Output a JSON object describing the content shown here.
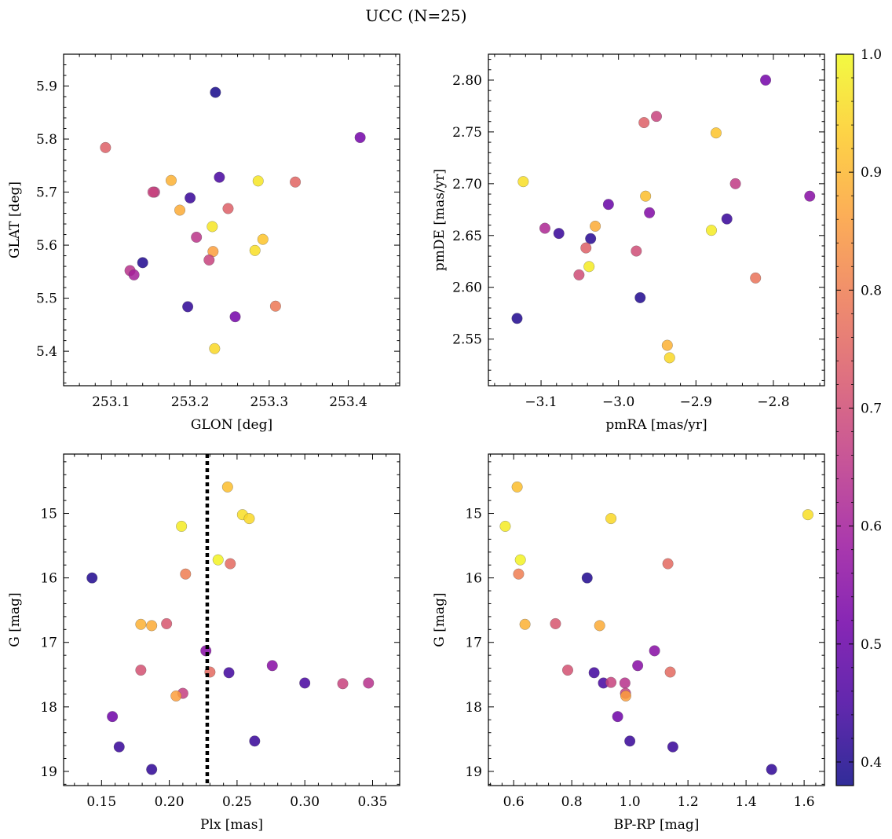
{
  "figure": {
    "title": "UCC (N=25)"
  },
  "colorbar": {
    "min": 0.38,
    "max": 1.0,
    "ticks": [
      0.4,
      0.5,
      0.6,
      0.7,
      0.8,
      0.9,
      1.0
    ],
    "tick_labels": [
      "0.4",
      "0.5",
      "0.6",
      "0.7",
      "0.8",
      "0.9",
      "1.0"
    ],
    "colormap": "plasma",
    "colormap_stops": [
      "#0d0887",
      "#46039f",
      "#7201a8",
      "#9c179e",
      "#bd3786",
      "#d8576b",
      "#ed7953",
      "#fb9f3a",
      "#fdca26",
      "#f0f921"
    ]
  },
  "chart_data": [
    {
      "type": "scatter",
      "xlabel": "GLON [deg]",
      "ylabel": "GLAT [deg]",
      "xlim": [
        253.04,
        253.465
      ],
      "ylim": [
        5.335,
        5.96
      ],
      "xticks": [
        253.1,
        253.2,
        253.3,
        253.4
      ],
      "xtick_labels": [
        "253.1",
        "253.2",
        "253.3",
        "253.4"
      ],
      "yticks": [
        5.4,
        5.5,
        5.6,
        5.7,
        5.8,
        5.9
      ],
      "ytick_labels": [
        "5.4",
        "5.5",
        "5.6",
        "5.7",
        "5.8",
        "5.9"
      ],
      "xminor": 0.02,
      "yminor": 0.02,
      "y_inverted": false,
      "points": [
        {
          "x": 253.232,
          "y": 5.888,
          "c": 0.39
        },
        {
          "x": 253.415,
          "y": 5.803,
          "c": 0.52
        },
        {
          "x": 253.093,
          "y": 5.784,
          "c": 0.74
        },
        {
          "x": 253.237,
          "y": 5.728,
          "c": 0.45
        },
        {
          "x": 253.286,
          "y": 5.721,
          "c": 0.97
        },
        {
          "x": 253.176,
          "y": 5.722,
          "c": 0.89
        },
        {
          "x": 253.333,
          "y": 5.719,
          "c": 0.75
        },
        {
          "x": 253.155,
          "y": 5.7,
          "c": 0.66
        },
        {
          "x": 253.153,
          "y": 5.7,
          "c": 0.68
        },
        {
          "x": 253.2,
          "y": 5.689,
          "c": 0.43
        },
        {
          "x": 253.248,
          "y": 5.669,
          "c": 0.74
        },
        {
          "x": 253.187,
          "y": 5.666,
          "c": 0.88
        },
        {
          "x": 253.228,
          "y": 5.635,
          "c": 0.97
        },
        {
          "x": 253.208,
          "y": 5.615,
          "c": 0.65
        },
        {
          "x": 253.292,
          "y": 5.611,
          "c": 0.92
        },
        {
          "x": 253.282,
          "y": 5.59,
          "c": 0.96
        },
        {
          "x": 253.229,
          "y": 5.588,
          "c": 0.86
        },
        {
          "x": 253.224,
          "y": 5.572,
          "c": 0.68
        },
        {
          "x": 253.14,
          "y": 5.567,
          "c": 0.4
        },
        {
          "x": 253.124,
          "y": 5.552,
          "c": 0.64
        },
        {
          "x": 253.129,
          "y": 5.544,
          "c": 0.6
        },
        {
          "x": 253.197,
          "y": 5.484,
          "c": 0.42
        },
        {
          "x": 253.308,
          "y": 5.485,
          "c": 0.79
        },
        {
          "x": 253.257,
          "y": 5.465,
          "c": 0.52
        },
        {
          "x": 253.231,
          "y": 5.405,
          "c": 0.95
        }
      ]
    },
    {
      "type": "scatter",
      "xlabel": "pmRA [mas/yr]",
      "ylabel": "pmDE [mas/yr]",
      "xlim": [
        -3.168,
        -2.734
      ],
      "ylim": [
        2.505,
        2.825
      ],
      "xticks": [
        -3.1,
        -3.0,
        -2.9,
        -2.8
      ],
      "xtick_labels": [
        "−3.1",
        "−3.0",
        "−2.9",
        "−2.8"
      ],
      "yticks": [
        2.55,
        2.6,
        2.65,
        2.7,
        2.75,
        2.8
      ],
      "ytick_labels": [
        "2.55",
        "2.60",
        "2.65",
        "2.70",
        "2.75",
        "2.80"
      ],
      "xminor": 0.02,
      "yminor": 0.01,
      "y_inverted": false,
      "points": [
        {
          "x": -2.81,
          "y": 2.8,
          "c": 0.52
        },
        {
          "x": -2.951,
          "y": 2.765,
          "c": 0.68
        },
        {
          "x": -2.967,
          "y": 2.759,
          "c": 0.74
        },
        {
          "x": -2.874,
          "y": 2.749,
          "c": 0.92
        },
        {
          "x": -3.123,
          "y": 2.702,
          "c": 0.96
        },
        {
          "x": -2.849,
          "y": 2.7,
          "c": 0.66
        },
        {
          "x": -2.753,
          "y": 2.688,
          "c": 0.55
        },
        {
          "x": -2.965,
          "y": 2.688,
          "c": 0.91
        },
        {
          "x": -3.013,
          "y": 2.68,
          "c": 0.5
        },
        {
          "x": -2.96,
          "y": 2.672,
          "c": 0.54
        },
        {
          "x": -2.86,
          "y": 2.666,
          "c": 0.43
        },
        {
          "x": -3.03,
          "y": 2.659,
          "c": 0.88
        },
        {
          "x": -3.095,
          "y": 2.657,
          "c": 0.62
        },
        {
          "x": -2.88,
          "y": 2.655,
          "c": 0.98
        },
        {
          "x": -3.077,
          "y": 2.652,
          "c": 0.43
        },
        {
          "x": -3.036,
          "y": 2.647,
          "c": 0.41
        },
        {
          "x": -3.042,
          "y": 2.638,
          "c": 0.74
        },
        {
          "x": -2.977,
          "y": 2.635,
          "c": 0.7
        },
        {
          "x": -3.038,
          "y": 2.62,
          "c": 0.98
        },
        {
          "x": -3.051,
          "y": 2.612,
          "c": 0.7
        },
        {
          "x": -2.823,
          "y": 2.609,
          "c": 0.78
        },
        {
          "x": -2.972,
          "y": 2.59,
          "c": 0.4
        },
        {
          "x": -3.131,
          "y": 2.57,
          "c": 0.4
        },
        {
          "x": -2.937,
          "y": 2.544,
          "c": 0.89
        },
        {
          "x": -2.934,
          "y": 2.532,
          "c": 0.95
        }
      ]
    },
    {
      "type": "scatter",
      "xlabel": "Plx [mas]",
      "ylabel": "G [mag]",
      "xlim": [
        0.122,
        0.37
      ],
      "ylim": [
        14.08,
        19.22
      ],
      "xticks": [
        0.15,
        0.2,
        0.25,
        0.3,
        0.35
      ],
      "xtick_labels": [
        "0.15",
        "0.20",
        "0.25",
        "0.30",
        "0.35"
      ],
      "yticks": [
        15,
        16,
        17,
        18,
        19
      ],
      "ytick_labels": [
        "15",
        "16",
        "17",
        "18",
        "19"
      ],
      "xminor": 0.01,
      "yminor": 0.2,
      "y_inverted": true,
      "vline": 0.228,
      "points": [
        {
          "x": 0.243,
          "y": 14.59,
          "c": 0.91
        },
        {
          "x": 0.254,
          "y": 15.02,
          "c": 0.96
        },
        {
          "x": 0.259,
          "y": 15.08,
          "c": 0.95
        },
        {
          "x": 0.209,
          "y": 15.2,
          "c": 0.98
        },
        {
          "x": 0.236,
          "y": 15.72,
          "c": 0.99
        },
        {
          "x": 0.245,
          "y": 15.78,
          "c": 0.76
        },
        {
          "x": 0.212,
          "y": 15.94,
          "c": 0.8
        },
        {
          "x": 0.143,
          "y": 16.0,
          "c": 0.4
        },
        {
          "x": 0.179,
          "y": 16.72,
          "c": 0.89
        },
        {
          "x": 0.187,
          "y": 16.74,
          "c": 0.88
        },
        {
          "x": 0.198,
          "y": 16.71,
          "c": 0.72
        },
        {
          "x": 0.227,
          "y": 17.13,
          "c": 0.55
        },
        {
          "x": 0.276,
          "y": 17.36,
          "c": 0.55
        },
        {
          "x": 0.179,
          "y": 17.43,
          "c": 0.71
        },
        {
          "x": 0.23,
          "y": 17.46,
          "c": 0.76
        },
        {
          "x": 0.244,
          "y": 17.47,
          "c": 0.44
        },
        {
          "x": 0.3,
          "y": 17.63,
          "c": 0.45
        },
        {
          "x": 0.328,
          "y": 17.64,
          "c": 0.68
        },
        {
          "x": 0.347,
          "y": 17.63,
          "c": 0.64
        },
        {
          "x": 0.21,
          "y": 17.79,
          "c": 0.67
        },
        {
          "x": 0.205,
          "y": 17.83,
          "c": 0.86
        },
        {
          "x": 0.158,
          "y": 18.15,
          "c": 0.51
        },
        {
          "x": 0.263,
          "y": 18.53,
          "c": 0.43
        },
        {
          "x": 0.163,
          "y": 18.62,
          "c": 0.43
        },
        {
          "x": 0.187,
          "y": 18.97,
          "c": 0.42
        }
      ]
    },
    {
      "type": "scatter",
      "xlabel": "BP-RP [mag]",
      "ylabel": "G [mag]",
      "xlim": [
        0.513,
        1.67
      ],
      "ylim": [
        14.08,
        19.22
      ],
      "xticks": [
        0.6,
        0.8,
        1.0,
        1.2,
        1.4,
        1.6
      ],
      "xtick_labels": [
        "0.6",
        "0.8",
        "1.0",
        "1.2",
        "1.4",
        "1.6"
      ],
      "yticks": [
        15,
        16,
        17,
        18,
        19
      ],
      "ytick_labels": [
        "15",
        "16",
        "17",
        "18",
        "19"
      ],
      "xminor": 0.04,
      "yminor": 0.2,
      "y_inverted": true,
      "points": [
        {
          "x": 0.612,
          "y": 14.59,
          "c": 0.91
        },
        {
          "x": 1.613,
          "y": 15.02,
          "c": 0.96
        },
        {
          "x": 0.935,
          "y": 15.08,
          "c": 0.95
        },
        {
          "x": 0.571,
          "y": 15.2,
          "c": 0.98
        },
        {
          "x": 0.623,
          "y": 15.72,
          "c": 0.99
        },
        {
          "x": 1.131,
          "y": 15.78,
          "c": 0.76
        },
        {
          "x": 0.617,
          "y": 15.94,
          "c": 0.8
        },
        {
          "x": 0.853,
          "y": 16.0,
          "c": 0.4
        },
        {
          "x": 0.639,
          "y": 16.72,
          "c": 0.89
        },
        {
          "x": 0.896,
          "y": 16.74,
          "c": 0.88
        },
        {
          "x": 0.744,
          "y": 16.71,
          "c": 0.72
        },
        {
          "x": 1.085,
          "y": 17.13,
          "c": 0.55
        },
        {
          "x": 1.027,
          "y": 17.36,
          "c": 0.55
        },
        {
          "x": 0.786,
          "y": 17.43,
          "c": 0.71
        },
        {
          "x": 1.139,
          "y": 17.46,
          "c": 0.76
        },
        {
          "x": 0.877,
          "y": 17.47,
          "c": 0.44
        },
        {
          "x": 0.909,
          "y": 17.63,
          "c": 0.45
        },
        {
          "x": 0.935,
          "y": 17.62,
          "c": 0.68
        },
        {
          "x": 0.983,
          "y": 17.63,
          "c": 0.64
        },
        {
          "x": 0.985,
          "y": 17.79,
          "c": 0.67
        },
        {
          "x": 0.986,
          "y": 17.83,
          "c": 0.86
        },
        {
          "x": 0.958,
          "y": 18.15,
          "c": 0.51
        },
        {
          "x": 1.0,
          "y": 18.53,
          "c": 0.43
        },
        {
          "x": 1.148,
          "y": 18.62,
          "c": 0.43
        },
        {
          "x": 1.488,
          "y": 18.97,
          "c": 0.42
        }
      ]
    }
  ]
}
